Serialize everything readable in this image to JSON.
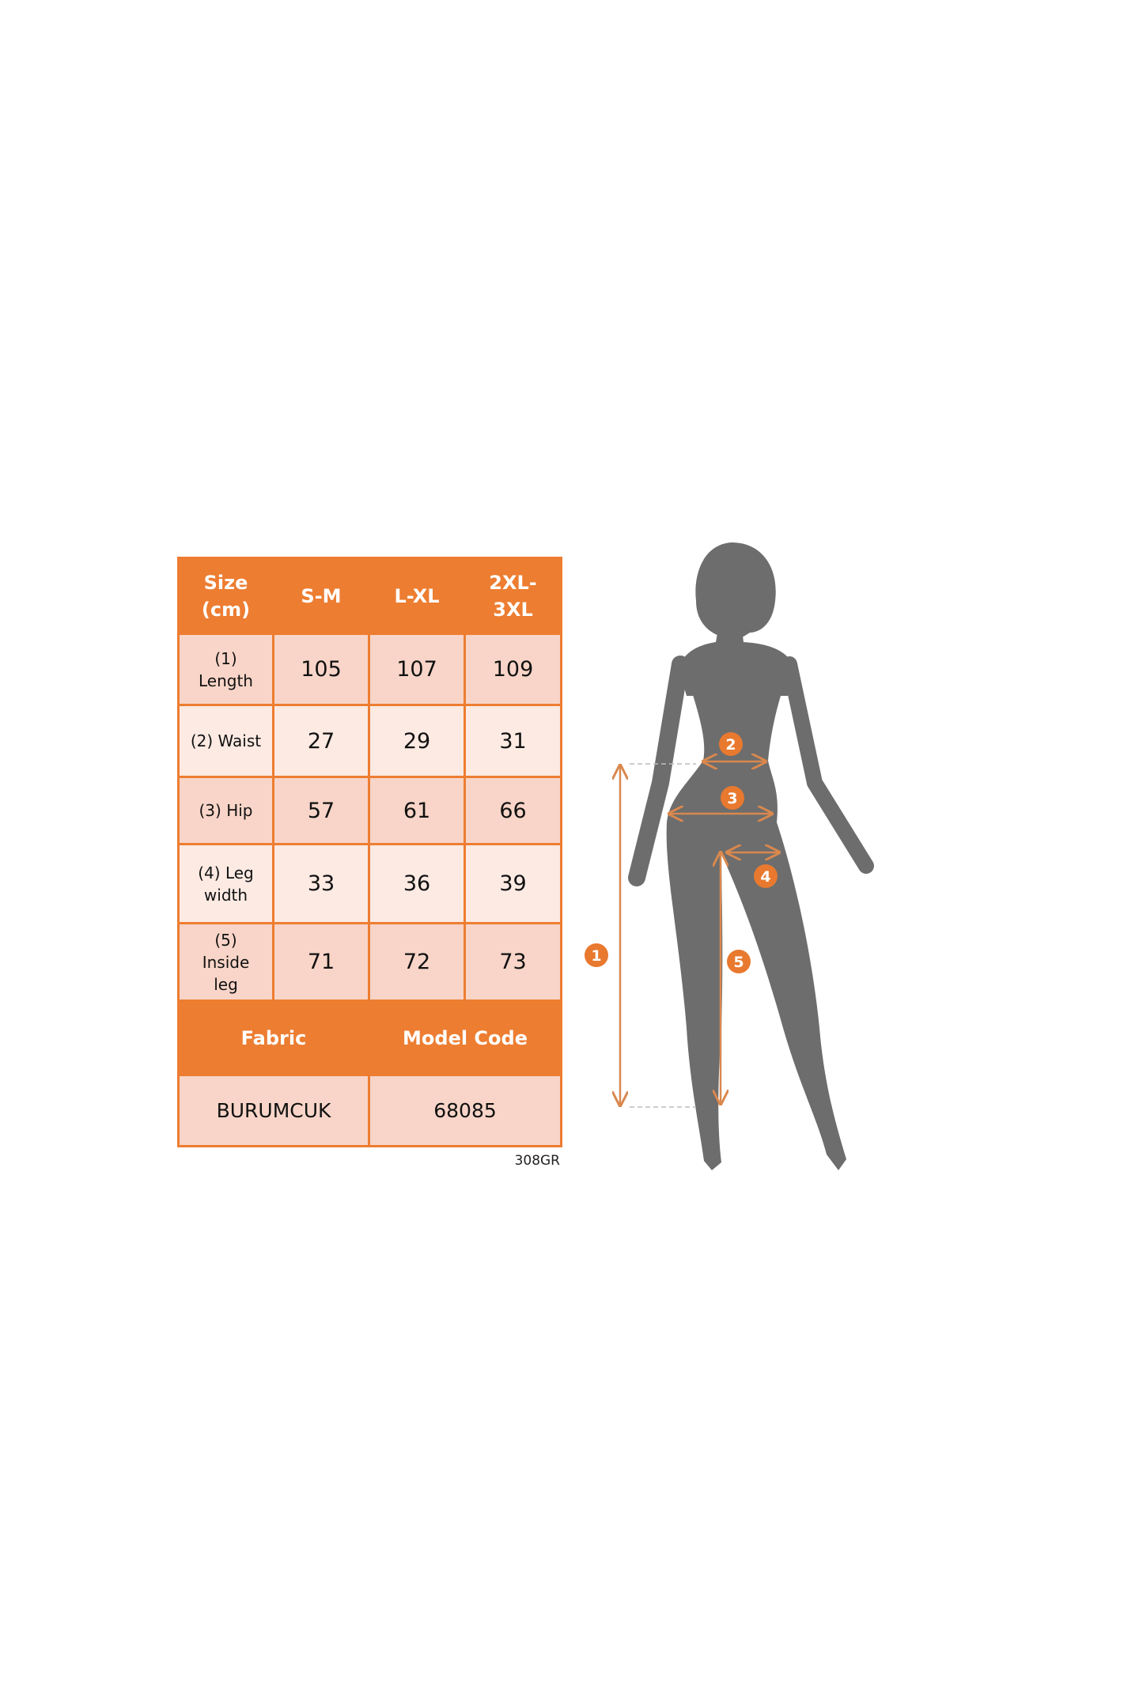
{
  "table": {
    "header": [
      "Size\n(cm)",
      "S-M",
      "L-XL",
      "2XL-\n3XL"
    ],
    "header_lines": [
      [
        "Size",
        "(cm)"
      ],
      [
        "S-M"
      ],
      [
        "L-XL"
      ],
      [
        "2XL-",
        "3XL"
      ]
    ],
    "rows": [
      {
        "label_lines": [
          "(1)",
          "Length"
        ],
        "values": [
          "105",
          "107",
          "109"
        ]
      },
      {
        "label_lines": [
          "(2) Waist"
        ],
        "values": [
          "27",
          "29",
          "31"
        ]
      },
      {
        "label_lines": [
          "(3) Hip"
        ],
        "values": [
          "57",
          "61",
          "66"
        ]
      },
      {
        "label_lines": [
          "(4) Leg",
          "width"
        ],
        "values": [
          "33",
          "36",
          "39"
        ]
      },
      {
        "label_lines": [
          "(5)",
          "Inside",
          "leg"
        ],
        "values": [
          "71",
          "72",
          "73"
        ]
      }
    ],
    "footer_header": [
      "Fabric",
      "Model Code"
    ],
    "footer_values": [
      "BURUMCUK",
      "68085"
    ]
  },
  "code": "308GR",
  "figure": {
    "badges": [
      "1",
      "2",
      "3",
      "4",
      "5"
    ]
  },
  "colors": {
    "accent": "#ED7D31",
    "cell_dark": "#F8D5C8",
    "cell_light": "#FCEAE3",
    "silhouette": "#6D6D6D"
  }
}
